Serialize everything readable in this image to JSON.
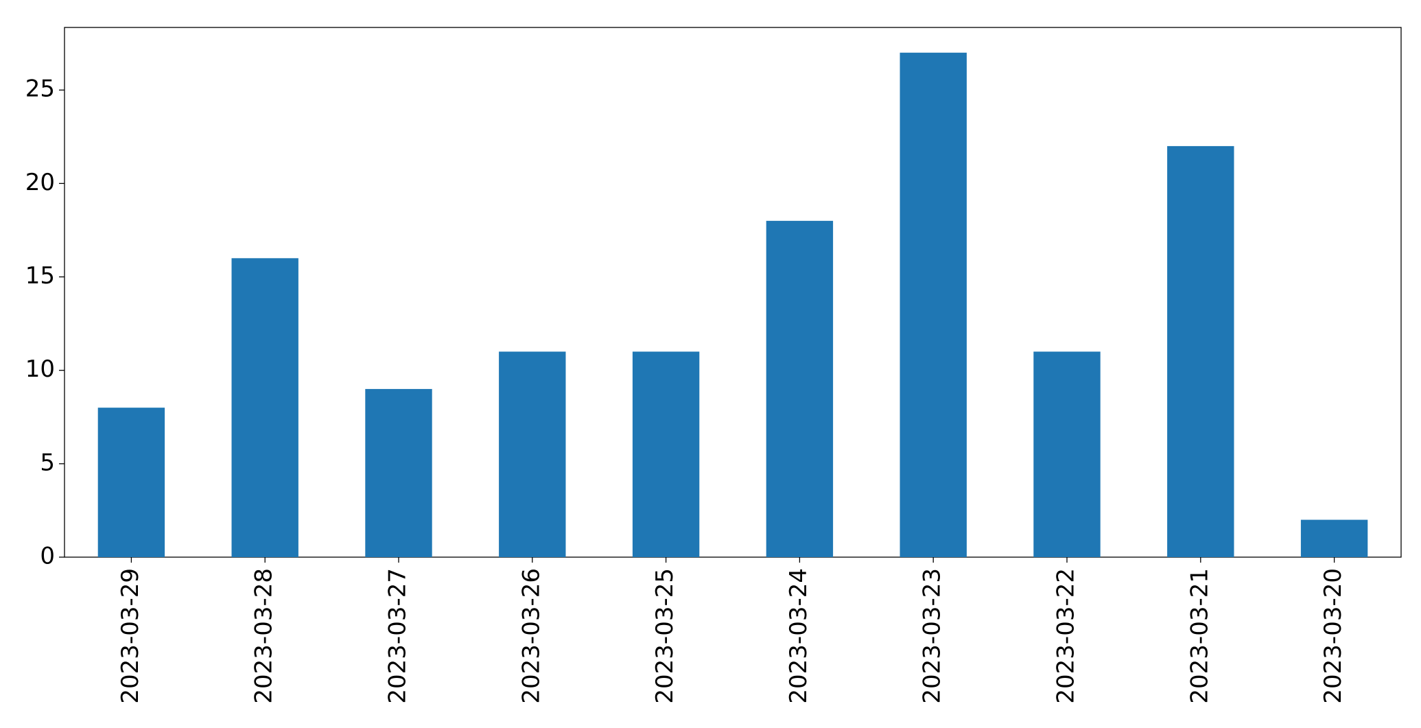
{
  "chart_data": {
    "type": "bar",
    "categories": [
      "2023-03-29",
      "2023-03-28",
      "2023-03-27",
      "2023-03-26",
      "2023-03-25",
      "2023-03-24",
      "2023-03-23",
      "2023-03-22",
      "2023-03-21",
      "2023-03-20"
    ],
    "values": [
      8,
      16,
      9,
      11,
      11,
      18,
      27,
      11,
      22,
      2
    ],
    "color": "#1f77b4",
    "ylim": [
      0,
      28.35
    ],
    "yticks": [
      0,
      5,
      10,
      15,
      20,
      25
    ],
    "grid": false
  }
}
